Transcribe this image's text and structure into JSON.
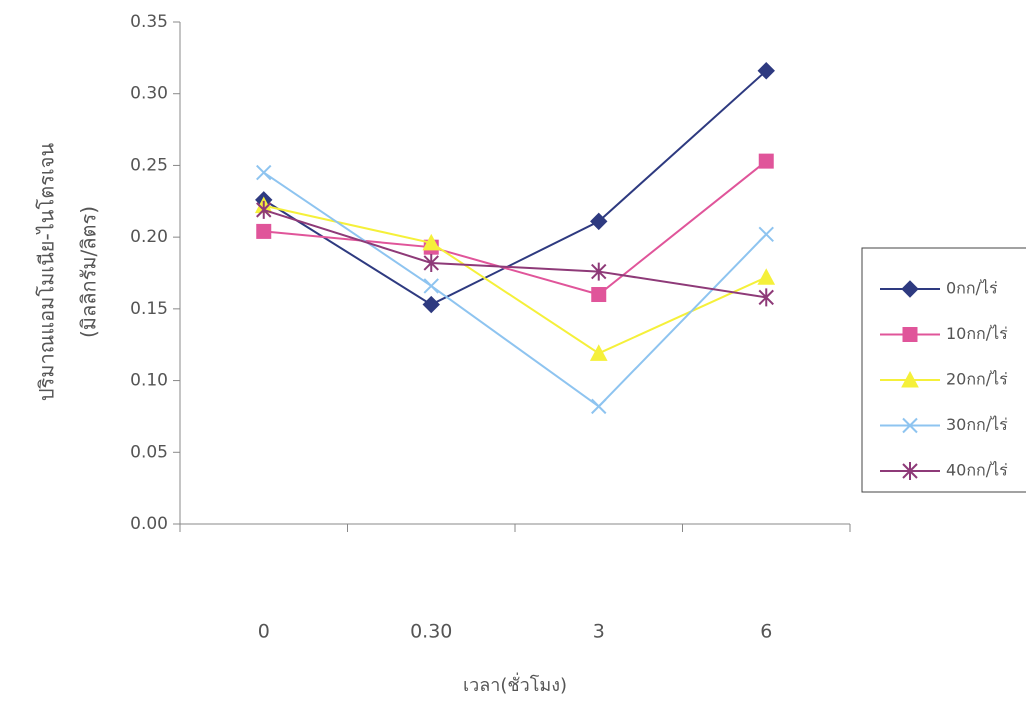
{
  "chart_data": {
    "type": "line",
    "y_label": [
      "ปริมาณแอมโมเนีย-ไนโตรเจน",
      "(มิลลิกรัม/ลิตร)"
    ],
    "x_label": "เวลา(ชั่วโมง)",
    "categories": [
      "0",
      "0.30",
      "3",
      "6"
    ],
    "ylim": [
      0,
      0.35
    ],
    "yticks": [
      {
        "value": 0,
        "label": "0.00"
      },
      {
        "value": 0.05,
        "label": "0.05"
      },
      {
        "value": 0.1,
        "label": "0.10"
      },
      {
        "value": 0.15,
        "label": "0.15"
      },
      {
        "value": 0.2,
        "label": "0.20"
      },
      {
        "value": 0.25,
        "label": "0.25"
      },
      {
        "value": 0.3,
        "label": "0.30"
      },
      {
        "value": 0.35,
        "label": "0.35"
      }
    ],
    "legend": "right",
    "series": [
      {
        "name": "0กก/ไร่",
        "color": "#2e3a80",
        "marker": "diamond",
        "values": [
          0.226,
          0.153,
          0.211,
          0.316
        ]
      },
      {
        "name": "10กก/ไร่",
        "color": "#e0559a",
        "marker": "square",
        "values": [
          0.204,
          0.193,
          0.16,
          0.253
        ]
      },
      {
        "name": "20กก/ไร่",
        "color": "#f5f03a",
        "marker": "triangle",
        "values": [
          0.222,
          0.196,
          0.119,
          0.172
        ]
      },
      {
        "name": "30กก/ไร่",
        "color": "#8ec4f0",
        "marker": "x",
        "values": [
          0.245,
          0.166,
          0.082,
          0.202
        ]
      },
      {
        "name": "40กก/ไร่",
        "color": "#8e3a78",
        "marker": "asterisk",
        "values": [
          0.219,
          0.182,
          0.176,
          0.158
        ]
      }
    ]
  }
}
